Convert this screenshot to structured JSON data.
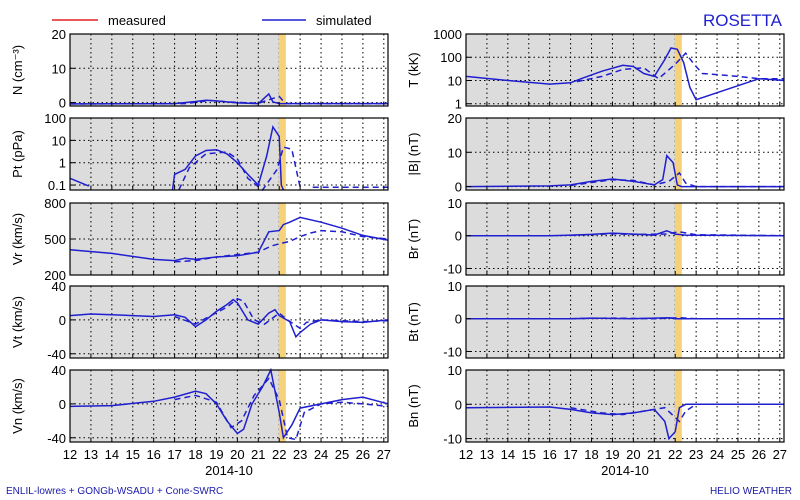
{
  "header": {
    "spacecraft": "ROSETTA",
    "legend_measured": "measured",
    "legend_simulated": "simulated"
  },
  "footer": {
    "left": "ENLIL-lowres + GONGb-WSADU + Cone-SWRC",
    "right": "HELIO WEATHER"
  },
  "colors": {
    "measured": "#e02020",
    "simulated": "#1f1fd0",
    "shade": "#dcdcdc",
    "marker": "#f5d27a"
  },
  "chart_data": {
    "type": "line",
    "x_ticks": [
      "12",
      "13",
      "14",
      "15",
      "16",
      "17",
      "18",
      "19",
      "20",
      "21",
      "22",
      "23",
      "24",
      "25",
      "26",
      "27"
    ],
    "x_label": "2014-10",
    "xlim": [
      12,
      27.2
    ],
    "shade_until": 22,
    "marker_at": 22.15,
    "panels": [
      {
        "id": "N",
        "ylabel": "N (cm⁻³)",
        "ylim": [
          -1,
          20
        ],
        "log": false,
        "ticks": [
          0,
          10,
          20
        ],
        "tick_labels": [
          "0",
          "10",
          "20"
        ],
        "solid": [
          [
            12,
            -0.4
          ],
          [
            17,
            -0.3
          ],
          [
            18,
            0.3
          ],
          [
            18.5,
            0.7
          ],
          [
            19,
            0.5
          ],
          [
            20,
            -0.1
          ],
          [
            21,
            -0.3
          ],
          [
            21.5,
            2.5
          ],
          [
            21.7,
            0.2
          ],
          [
            22,
            -0.3
          ],
          [
            27.2,
            -0.3
          ]
        ],
        "dashed": [
          [
            12,
            -0.4
          ],
          [
            17.5,
            -0.3
          ],
          [
            18.7,
            0.6
          ],
          [
            19.5,
            0.2
          ],
          [
            21,
            -0.2
          ],
          [
            22,
            1.8
          ],
          [
            22.3,
            -0.3
          ],
          [
            27.2,
            -0.3
          ]
        ]
      },
      {
        "id": "Pt",
        "ylabel": "Pt (pPa)",
        "ylim": [
          0.06,
          100
        ],
        "log": true,
        "ticks": [
          0.1,
          1,
          10,
          100
        ],
        "tick_labels": [
          "0.1",
          "1",
          "10",
          "100"
        ],
        "solid": [
          [
            12,
            0.2
          ],
          [
            12.9,
            0.09
          ],
          [
            null,
            null
          ],
          [
            16.9,
            0.06
          ],
          [
            17,
            0.3
          ],
          [
            17.5,
            0.5
          ],
          [
            18,
            2
          ],
          [
            18.5,
            3.5
          ],
          [
            19,
            3.8
          ],
          [
            19.5,
            2.5
          ],
          [
            20,
            1
          ],
          [
            20.5,
            0.3
          ],
          [
            21,
            0.1
          ],
          [
            21.4,
            2
          ],
          [
            21.7,
            40
          ],
          [
            22,
            15
          ],
          [
            22.1,
            0.1
          ],
          [
            22.2,
            0.06
          ]
        ],
        "dashed": [
          [
            17.2,
            0.06
          ],
          [
            17.7,
            0.6
          ],
          [
            18.5,
            2.5
          ],
          [
            19.5,
            3
          ],
          [
            20,
            1.5
          ],
          [
            20.5,
            0.2
          ],
          [
            21.2,
            0.06
          ],
          [
            21.9,
            0.5
          ],
          [
            22.2,
            5
          ],
          [
            22.6,
            4
          ],
          [
            23,
            0.08
          ],
          [
            null,
            null
          ],
          [
            23.6,
            0.08
          ],
          [
            27.2,
            0.08
          ]
        ]
      },
      {
        "id": "Vr",
        "ylabel": "Vr (km/s)",
        "ylim": [
          200,
          800
        ],
        "log": false,
        "ticks": [
          200,
          500,
          800
        ],
        "tick_labels": [
          "200",
          "500",
          "800"
        ],
        "solid": [
          [
            12,
            410
          ],
          [
            14,
            380
          ],
          [
            16,
            330
          ],
          [
            17,
            320
          ],
          [
            17.5,
            340
          ],
          [
            18,
            330
          ],
          [
            19,
            350
          ],
          [
            20,
            360
          ],
          [
            21,
            390
          ],
          [
            21.5,
            560
          ],
          [
            22,
            570
          ],
          [
            22.2,
            620
          ],
          [
            22.5,
            640
          ],
          [
            23,
            680
          ],
          [
            24,
            640
          ],
          [
            25,
            590
          ],
          [
            26,
            530
          ],
          [
            27.2,
            490
          ]
        ],
        "dashed": [
          [
            17,
            310
          ],
          [
            18,
            320
          ],
          [
            19,
            350
          ],
          [
            20,
            370
          ],
          [
            21,
            390
          ],
          [
            21.6,
            440
          ],
          [
            22,
            460
          ],
          [
            22.5,
            480
          ],
          [
            23,
            520
          ],
          [
            23.5,
            550
          ],
          [
            24,
            570
          ],
          [
            25,
            560
          ],
          [
            26,
            520
          ],
          [
            27.2,
            500
          ]
        ]
      },
      {
        "id": "Vt",
        "ylabel": "Vt (km/s)",
        "ylim": [
          -45,
          40
        ],
        "log": false,
        "ticks": [
          -40,
          0,
          40
        ],
        "tick_labels": [
          "-40",
          "0",
          "40"
        ],
        "solid": [
          [
            12,
            5
          ],
          [
            13,
            7
          ],
          [
            14,
            6
          ],
          [
            15,
            5
          ],
          [
            16,
            4
          ],
          [
            17,
            6
          ],
          [
            17.5,
            3
          ],
          [
            18,
            -8
          ],
          [
            18.5,
            0
          ],
          [
            19,
            10
          ],
          [
            19.5,
            18
          ],
          [
            19.8,
            24
          ],
          [
            20,
            20
          ],
          [
            20.5,
            0
          ],
          [
            21,
            -5
          ],
          [
            21.5,
            8
          ],
          [
            21.8,
            12
          ],
          [
            22,
            5
          ],
          [
            22.5,
            -2
          ],
          [
            22.8,
            -20
          ],
          [
            23,
            -15
          ],
          [
            23.5,
            -5
          ],
          [
            24,
            0
          ],
          [
            25,
            -2
          ],
          [
            26,
            -3
          ],
          [
            27.2,
            0
          ]
        ],
        "dashed": [
          [
            17,
            4
          ],
          [
            18,
            -5
          ],
          [
            18.5,
            2
          ],
          [
            19.5,
            15
          ],
          [
            20,
            25
          ],
          [
            20.3,
            22
          ],
          [
            20.8,
            0
          ],
          [
            21.3,
            -5
          ],
          [
            22,
            8
          ],
          [
            22.4,
            0
          ],
          [
            23,
            -10
          ],
          [
            23.3,
            -3
          ],
          [
            24,
            0
          ],
          [
            25,
            -1
          ],
          [
            26,
            -2
          ],
          [
            27.2,
            -1
          ]
        ]
      },
      {
        "id": "Vn",
        "ylabel": "Vn (km/s)",
        "ylim": [
          -45,
          40
        ],
        "log": false,
        "ticks": [
          -40,
          0,
          40
        ],
        "tick_labels": [
          "-40",
          "0",
          "40"
        ],
        "solid": [
          [
            12,
            -3
          ],
          [
            14,
            -2
          ],
          [
            16,
            3
          ],
          [
            17,
            8
          ],
          [
            18,
            15
          ],
          [
            18.5,
            12
          ],
          [
            19,
            0
          ],
          [
            19.5,
            -20
          ],
          [
            20,
            -35
          ],
          [
            20.3,
            -30
          ],
          [
            20.7,
            0
          ],
          [
            21.2,
            20
          ],
          [
            21.6,
            40
          ],
          [
            22,
            -10
          ],
          [
            22.2,
            -40
          ],
          [
            22.6,
            -25
          ],
          [
            23,
            -5
          ],
          [
            24,
            0
          ],
          [
            25,
            5
          ],
          [
            26,
            8
          ],
          [
            27.2,
            0
          ]
        ],
        "dashed": [
          [
            17,
            5
          ],
          [
            18,
            10
          ],
          [
            19,
            2
          ],
          [
            19.7,
            -28
          ],
          [
            20.2,
            -20
          ],
          [
            20.8,
            10
          ],
          [
            21.5,
            30
          ],
          [
            22,
            5
          ],
          [
            22.4,
            -40
          ],
          [
            22.8,
            -42
          ],
          [
            23.2,
            -10
          ],
          [
            24,
            0
          ],
          [
            25,
            2
          ],
          [
            26,
            0
          ],
          [
            27.2,
            -3
          ]
        ]
      },
      {
        "id": "T",
        "ylabel": "T (kK)",
        "ylim": [
          0.8,
          1000
        ],
        "log": true,
        "ticks": [
          1,
          10,
          100,
          1000
        ],
        "tick_labels": [
          "1",
          "10",
          "100",
          "1000"
        ],
        "solid": [
          [
            12,
            15
          ],
          [
            14,
            10
          ],
          [
            16,
            7
          ],
          [
            17,
            8
          ],
          [
            17.5,
            12
          ],
          [
            18.5,
            25
          ],
          [
            19.5,
            45
          ],
          [
            20,
            40
          ],
          [
            20.5,
            20
          ],
          [
            21,
            15
          ],
          [
            21.5,
            80
          ],
          [
            21.8,
            250
          ],
          [
            22.1,
            220
          ],
          [
            22.4,
            60
          ],
          [
            22.7,
            5
          ],
          [
            23,
            1.5
          ],
          [
            24,
            3
          ],
          [
            25,
            6
          ],
          [
            26,
            12
          ],
          [
            27.2,
            10
          ]
        ],
        "dashed": [
          [
            17.3,
            9
          ],
          [
            18.5,
            15
          ],
          [
            19.5,
            30
          ],
          [
            20.5,
            35
          ],
          [
            21.2,
            12
          ],
          [
            22,
            50
          ],
          [
            22.5,
            150
          ],
          [
            22.9,
            50
          ],
          [
            23.3,
            20
          ],
          [
            24,
            18
          ],
          [
            25,
            15
          ],
          [
            26,
            12
          ],
          [
            27.2,
            12
          ]
        ]
      },
      {
        "id": "B",
        "ylabel": "|B| (nT)",
        "ylim": [
          -1,
          20
        ],
        "log": false,
        "ticks": [
          0,
          10,
          20
        ],
        "tick_labels": [
          "0",
          "10",
          "20"
        ],
        "solid": [
          [
            12,
            0
          ],
          [
            16,
            0.2
          ],
          [
            17,
            0.5
          ],
          [
            18,
            1.5
          ],
          [
            19,
            2.2
          ],
          [
            20,
            1.5
          ],
          [
            21,
            0.5
          ],
          [
            21.4,
            2
          ],
          [
            21.6,
            9
          ],
          [
            21.9,
            7
          ],
          [
            22.1,
            0.5
          ],
          [
            22.3,
            0
          ],
          [
            27.2,
            0
          ]
        ],
        "dashed": [
          [
            17,
            0.3
          ],
          [
            18,
            1.2
          ],
          [
            19,
            2
          ],
          [
            20,
            1.8
          ],
          [
            21,
            0.5
          ],
          [
            21.7,
            1.5
          ],
          [
            22.2,
            4
          ],
          [
            22.5,
            1
          ],
          [
            23,
            0
          ],
          [
            27.2,
            0
          ]
        ]
      },
      {
        "id": "Br",
        "ylabel": "Br (nT)",
        "ylim": [
          -12,
          10
        ],
        "log": false,
        "ticks": [
          -10,
          0,
          10
        ],
        "tick_labels": [
          "-10",
          "0",
          "10"
        ],
        "solid": [
          [
            12,
            0
          ],
          [
            16,
            0
          ],
          [
            17,
            0.2
          ],
          [
            18,
            0.4
          ],
          [
            19,
            0.8
          ],
          [
            20,
            0.5
          ],
          [
            21,
            0.2
          ],
          [
            21.6,
            1.5
          ],
          [
            22,
            0.5
          ],
          [
            22.5,
            0.2
          ],
          [
            27.2,
            0
          ]
        ],
        "dashed": [
          [
            17,
            0.1
          ],
          [
            19,
            0.6
          ],
          [
            20,
            0.4
          ],
          [
            21.5,
            0.5
          ],
          [
            22.2,
            1.2
          ],
          [
            23,
            0.3
          ],
          [
            27.2,
            0
          ]
        ]
      },
      {
        "id": "Bt",
        "ylabel": "Bt (nT)",
        "ylim": [
          -12,
          10
        ],
        "log": false,
        "ticks": [
          -10,
          0,
          10
        ],
        "tick_labels": [
          "-10",
          "0",
          "10"
        ],
        "solid": [
          [
            12,
            0
          ],
          [
            17,
            0
          ],
          [
            18,
            0.2
          ],
          [
            20,
            0
          ],
          [
            21.7,
            0.3
          ],
          [
            22,
            0
          ],
          [
            27.2,
            0
          ]
        ],
        "dashed": [
          [
            17,
            0
          ],
          [
            19,
            0.2
          ],
          [
            21,
            0
          ],
          [
            22.2,
            0.3
          ],
          [
            23,
            0
          ],
          [
            27.2,
            0
          ]
        ]
      },
      {
        "id": "Bn",
        "ylabel": "Bn (nT)",
        "ylim": [
          -11,
          10
        ],
        "log": false,
        "ticks": [
          -10,
          0,
          10
        ],
        "tick_labels": [
          "-10",
          "0",
          "10"
        ],
        "solid": [
          [
            12,
            -1
          ],
          [
            16,
            -0.8
          ],
          [
            17,
            -1.5
          ],
          [
            18,
            -2.5
          ],
          [
            19,
            -3
          ],
          [
            20,
            -2.5
          ],
          [
            21,
            -1.5
          ],
          [
            21.5,
            -5
          ],
          [
            21.7,
            -10
          ],
          [
            22,
            -8
          ],
          [
            22.2,
            -1
          ],
          [
            22.5,
            0
          ],
          [
            27.2,
            0
          ]
        ],
        "dashed": [
          [
            17,
            -1
          ],
          [
            18.5,
            -2.5
          ],
          [
            19.5,
            -3
          ],
          [
            20.5,
            -2
          ],
          [
            21.5,
            -1
          ],
          [
            22.2,
            -5
          ],
          [
            22.5,
            -2
          ],
          [
            23,
            0
          ],
          [
            27.2,
            0
          ]
        ]
      }
    ]
  }
}
